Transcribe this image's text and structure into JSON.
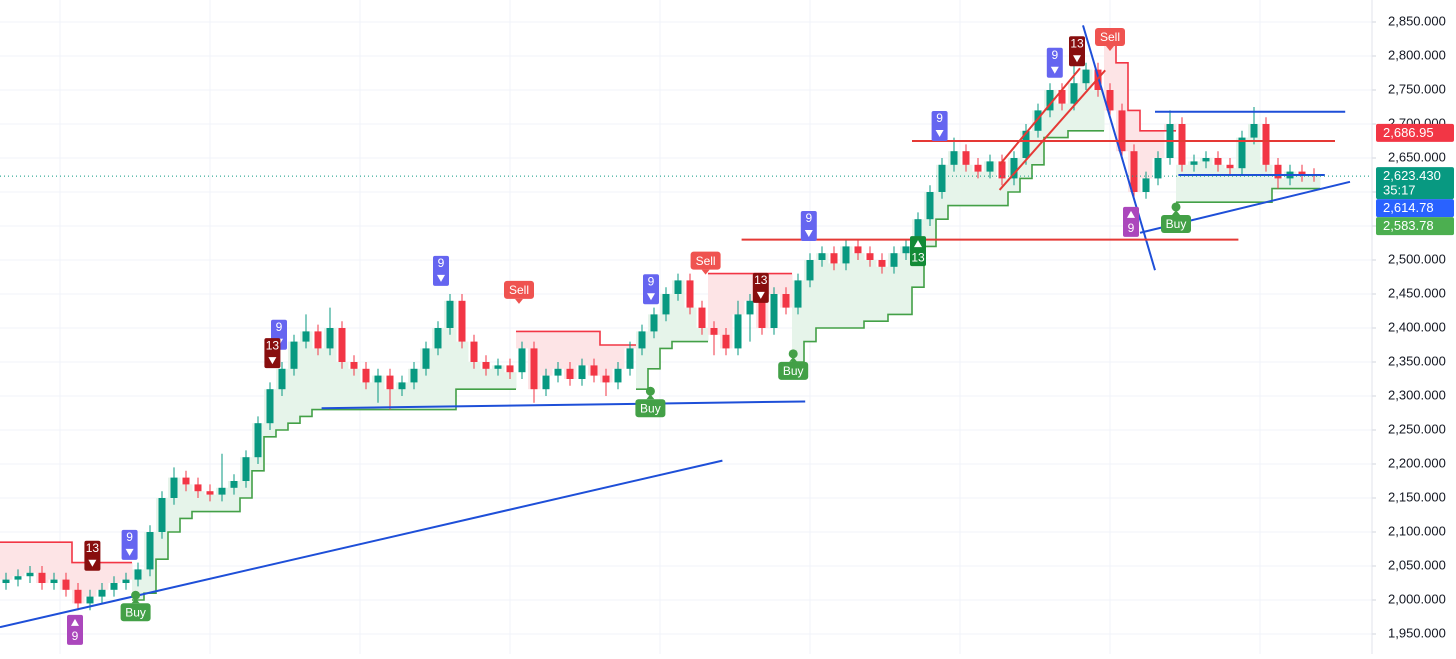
{
  "chart_data": {
    "type": "candlestick",
    "up_color": "#089981",
    "down_color": "#f23645",
    "grid": true,
    "ylim": [
      1920.6,
      2882.35
    ],
    "yticks": [
      {
        "value": 1950,
        "label": "1,950.000"
      },
      {
        "value": 2000,
        "label": "2,000.000"
      },
      {
        "value": 2050,
        "label": "2,050.000"
      },
      {
        "value": 2100,
        "label": "2,100.000"
      },
      {
        "value": 2150,
        "label": "2,150.000"
      },
      {
        "value": 2200,
        "label": "2,200.000"
      },
      {
        "value": 2250,
        "label": "2,250.000"
      },
      {
        "value": 2300,
        "label": "2,300.000"
      },
      {
        "value": 2350,
        "label": "2,350.000"
      },
      {
        "value": 2400,
        "label": "2,400.000"
      },
      {
        "value": 2450,
        "label": "2,450.000"
      },
      {
        "value": 2500,
        "label": "2,500.000"
      },
      {
        "value": 2550,
        "label": "2,550.000"
      },
      {
        "value": 2600,
        "label": "2,600.000"
      },
      {
        "value": 2650,
        "label": "2,650.000"
      },
      {
        "value": 2700,
        "label": "2,700.000"
      },
      {
        "value": 2750,
        "label": "2,750.000"
      },
      {
        "value": 2800,
        "label": "2,800.000"
      },
      {
        "value": 2850,
        "label": "2,850.000"
      }
    ],
    "open": [
      2025,
      2030,
      2035,
      2040,
      2025,
      2030,
      2015,
      1995,
      2005,
      2015,
      2025,
      2030,
      2045,
      2100,
      2150,
      2180,
      2170,
      2160,
      2155,
      2165,
      2175,
      2210,
      2260,
      2310,
      2340,
      2380,
      2395,
      2370,
      2400,
      2350,
      2340,
      2320,
      2330,
      2310,
      2320,
      2340,
      2370,
      2400,
      2440,
      2380,
      2350,
      2340,
      2345,
      2335,
      2370,
      2310,
      2330,
      2340,
      2325,
      2345,
      2330,
      2320,
      2340,
      2370,
      2395,
      2420,
      2450,
      2470,
      2430,
      2400,
      2390,
      2370,
      2420,
      2440,
      2400,
      2450,
      2430,
      2470,
      2500,
      2510,
      2495,
      2520,
      2510,
      2500,
      2490,
      2510,
      2520,
      2560,
      2600,
      2640,
      2660,
      2640,
      2630,
      2645,
      2620,
      2650,
      2690,
      2720,
      2750,
      2730,
      2760,
      2780,
      2750,
      2720,
      2660,
      2600,
      2620,
      2650,
      2700,
      2640,
      2645,
      2650,
      2640,
      2635,
      2680,
      2700,
      2640,
      2620,
      2630,
      2625
    ],
    "high": [
      2040,
      2045,
      2050,
      2050,
      2040,
      2040,
      2025,
      2015,
      2025,
      2035,
      2040,
      2055,
      2110,
      2160,
      2195,
      2190,
      2180,
      2170,
      2215,
      2185,
      2220,
      2270,
      2320,
      2350,
      2390,
      2420,
      2405,
      2430,
      2410,
      2360,
      2350,
      2340,
      2340,
      2330,
      2350,
      2380,
      2410,
      2450,
      2450,
      2390,
      2360,
      2355,
      2355,
      2380,
      2380,
      2340,
      2350,
      2350,
      2355,
      2355,
      2340,
      2350,
      2380,
      2405,
      2430,
      2460,
      2480,
      2480,
      2440,
      2410,
      2400,
      2440,
      2450,
      2450,
      2460,
      2460,
      2480,
      2510,
      2520,
      2520,
      2530,
      2530,
      2520,
      2510,
      2520,
      2530,
      2570,
      2610,
      2650,
      2680,
      2670,
      2650,
      2655,
      2655,
      2660,
      2700,
      2730,
      2760,
      2760,
      2790,
      2790,
      2790,
      2760,
      2730,
      2670,
      2630,
      2660,
      2720,
      2710,
      2655,
      2660,
      2660,
      2650,
      2690,
      2725,
      2710,
      2650,
      2640,
      2640,
      2635
    ],
    "low": [
      2015,
      2020,
      2025,
      2015,
      2015,
      2005,
      1985,
      1985,
      1995,
      2005,
      2015,
      2020,
      2035,
      2090,
      2140,
      2160,
      2150,
      2145,
      2145,
      2155,
      2165,
      2200,
      2250,
      2300,
      2330,
      2370,
      2360,
      2360,
      2340,
      2330,
      2310,
      2290,
      2280,
      2300,
      2310,
      2330,
      2360,
      2390,
      2370,
      2340,
      2330,
      2330,
      2325,
      2325,
      2290,
      2300,
      2320,
      2315,
      2315,
      2320,
      2300,
      2310,
      2330,
      2360,
      2385,
      2410,
      2440,
      2420,
      2390,
      2360,
      2360,
      2360,
      2380,
      2390,
      2390,
      2420,
      2420,
      2460,
      2490,
      2485,
      2485,
      2500,
      2490,
      2480,
      2480,
      2500,
      2510,
      2550,
      2590,
      2630,
      2630,
      2620,
      2620,
      2610,
      2610,
      2640,
      2680,
      2710,
      2720,
      2720,
      2750,
      2740,
      2710,
      2650,
      2590,
      2590,
      2610,
      2640,
      2630,
      2630,
      2635,
      2630,
      2625,
      2625,
      2670,
      2630,
      2605,
      2610,
      2615,
      2615
    ],
    "close": [
      2030,
      2035,
      2040,
      2025,
      2030,
      2015,
      1995,
      2005,
      2015,
      2025,
      2030,
      2045,
      2100,
      2150,
      2180,
      2170,
      2160,
      2155,
      2165,
      2175,
      2210,
      2260,
      2310,
      2340,
      2380,
      2395,
      2370,
      2400,
      2350,
      2340,
      2320,
      2330,
      2310,
      2320,
      2340,
      2370,
      2400,
      2440,
      2380,
      2350,
      2340,
      2345,
      2335,
      2370,
      2310,
      2330,
      2340,
      2325,
      2345,
      2330,
      2320,
      2340,
      2370,
      2395,
      2420,
      2450,
      2470,
      2430,
      2400,
      2390,
      2370,
      2420,
      2440,
      2400,
      2450,
      2430,
      2470,
      2500,
      2510,
      2495,
      2520,
      2510,
      2500,
      2490,
      2510,
      2520,
      2560,
      2600,
      2640,
      2660,
      2640,
      2630,
      2645,
      2620,
      2650,
      2690,
      2720,
      2750,
      2730,
      2760,
      2780,
      2750,
      2720,
      2660,
      2600,
      2620,
      2650,
      2700,
      2640,
      2645,
      2650,
      2640,
      2635,
      2680,
      2700,
      2640,
      2620,
      2630,
      2625,
      2623.43
    ],
    "up_stop": {
      "color": "#43a047",
      "fill": "#e6f4ea",
      "values": [
        null,
        null,
        null,
        null,
        null,
        null,
        null,
        null,
        null,
        null,
        null,
        2000,
        2010,
        2060,
        2100,
        2120,
        2130,
        2130,
        2130,
        2130,
        2150,
        2190,
        2240,
        2250,
        2260,
        2270,
        2280,
        2280,
        2280,
        2280,
        2280,
        2280,
        2280,
        2280,
        2280,
        2280,
        2280,
        2280,
        2310,
        2310,
        2310,
        2310,
        2310,
        null,
        null,
        null,
        null,
        null,
        null,
        null,
        null,
        null,
        null,
        2310,
        2340,
        2370,
        2380,
        2380,
        2380,
        null,
        null,
        null,
        null,
        null,
        null,
        null,
        2350,
        2380,
        2400,
        2400,
        2400,
        2400,
        2410,
        2410,
        2420,
        2420,
        2460,
        2520,
        2560,
        2580,
        2580,
        2580,
        2580,
        2580,
        2600,
        2620,
        2640,
        2680,
        2680,
        2690,
        2690,
        2690,
        null,
        null,
        null,
        null,
        null,
        null,
        2585,
        2585,
        2585,
        2585,
        2585,
        2585,
        2585,
        2585,
        2605,
        2605,
        2605,
        2605
      ]
    },
    "down_stop": {
      "color": "#f23645",
      "fill": "#fde4e6",
      "values": [
        2085,
        2085,
        2085,
        2085,
        2085,
        2085,
        2055,
        2055,
        2055,
        2055,
        2055,
        null,
        null,
        null,
        null,
        null,
        null,
        null,
        null,
        null,
        null,
        null,
        null,
        null,
        null,
        null,
        null,
        null,
        null,
        null,
        null,
        null,
        null,
        null,
        null,
        null,
        null,
        null,
        null,
        null,
        null,
        null,
        null,
        2395,
        2395,
        2395,
        2395,
        2395,
        2395,
        2395,
        2375,
        2375,
        2375,
        null,
        null,
        null,
        null,
        null,
        null,
        2480,
        2480,
        2480,
        2480,
        2480,
        2480,
        2480,
        null,
        null,
        null,
        null,
        null,
        null,
        null,
        null,
        null,
        null,
        null,
        null,
        null,
        null,
        null,
        null,
        null,
        null,
        null,
        null,
        null,
        null,
        null,
        null,
        null,
        null,
        2820,
        2790,
        2720,
        2690,
        2690,
        2690,
        null,
        null,
        null,
        null,
        null,
        null,
        null,
        null,
        null,
        null,
        null,
        null
      ]
    },
    "lines": [
      {
        "color": "#1e4fd8",
        "x": [
          -0.5,
          59.7
        ],
        "values": [
          1960,
          2205
        ]
      },
      {
        "color": "#1e4fd8",
        "x": [
          26.3,
          66.6
        ],
        "values": [
          2282,
          2292
        ]
      },
      {
        "color": "#1e4fd8",
        "x": [
          89.75,
          95.75
        ],
        "values": [
          2845,
          2485
        ]
      },
      {
        "color": "#1e4fd8",
        "x": [
          94.5,
          112
        ],
        "values": [
          2540,
          2615
        ]
      },
      {
        "color": "#1e4fd8",
        "x": [
          95.75,
          111.6
        ],
        "values": [
          2718,
          2718
        ]
      },
      {
        "color": "#1e4fd8",
        "x": [
          97.7,
          109.9
        ],
        "values": [
          2625,
          2625
        ]
      },
      {
        "color": "#e53935",
        "x": [
          75.5,
          110.75
        ],
        "values": [
          2675,
          2675
        ]
      },
      {
        "color": "#e53935",
        "x": [
          61.3,
          102.7
        ],
        "values": [
          2530,
          2530
        ]
      },
      {
        "color": "#e53935",
        "x": [
          82.8,
          89.5
        ],
        "values": [
          2640,
          2782
        ]
      },
      {
        "color": "#e53935",
        "x": [
          82.8,
          91.6
        ],
        "values": [
          2603,
          2779
        ]
      }
    ],
    "markers": [
      {
        "label": "13",
        "x": 7.2,
        "price": 2065,
        "color": "#880e0e",
        "shape": "down-arrow"
      },
      {
        "label": "9",
        "x": 10.3,
        "price": 2081,
        "color": "#6565f0",
        "shape": "down-arrow"
      },
      {
        "label": "Buy",
        "x": 10.8,
        "price": 1982,
        "color": "#43a047",
        "shape": "dot"
      },
      {
        "label": "9",
        "x": 5.75,
        "price": 1956,
        "color": "#ab47bc",
        "shape": "up-arrow"
      },
      {
        "label": "9",
        "x": 22.75,
        "price": 2390,
        "color": "#6565f0",
        "shape": "down-arrow"
      },
      {
        "label": "13",
        "x": 22.2,
        "price": 2363,
        "color": "#880e0e",
        "shape": "down-arrow"
      },
      {
        "label": "9",
        "x": 36.25,
        "price": 2484,
        "color": "#6565f0",
        "shape": "down-arrow"
      },
      {
        "label": "Sell",
        "x": 42.75,
        "price": 2456,
        "color": "#ef5350",
        "shape": "pointer"
      },
      {
        "label": "9",
        "x": 53.75,
        "price": 2457,
        "color": "#6565f0",
        "shape": "down-arrow"
      },
      {
        "label": "Buy",
        "x": 53.7,
        "price": 2282,
        "color": "#43a047",
        "shape": "dot"
      },
      {
        "label": "Sell",
        "x": 58.3,
        "price": 2499,
        "color": "#ef5350",
        "shape": "pointer"
      },
      {
        "label": "13",
        "x": 62.9,
        "price": 2459,
        "color": "#880e0e",
        "shape": "down-arrow"
      },
      {
        "label": "9",
        "x": 66.9,
        "price": 2550,
        "color": "#6565f0",
        "shape": "down-arrow"
      },
      {
        "label": "Buy",
        "x": 65.6,
        "price": 2337,
        "color": "#43a047",
        "shape": "dot"
      },
      {
        "label": "13",
        "x": 76,
        "price": 2513,
        "color": "#138a36",
        "shape": "up-arrow"
      },
      {
        "label": "9",
        "x": 77.8,
        "price": 2697,
        "color": "#6565f0",
        "shape": "down-arrow"
      },
      {
        "label": "9",
        "x": 87.4,
        "price": 2790,
        "color": "#6565f0",
        "shape": "down-arrow"
      },
      {
        "label": "13",
        "x": 89.25,
        "price": 2807,
        "color": "#880e0e",
        "shape": "down-arrow"
      },
      {
        "label": "Sell",
        "x": 92,
        "price": 2828,
        "color": "#ef5350",
        "shape": "pointer"
      },
      {
        "label": "9",
        "x": 93.75,
        "price": 2556,
        "color": "#ab47bc",
        "shape": "up-arrow"
      },
      {
        "label": "Buy",
        "x": 97.5,
        "price": 2553,
        "color": "#43a047",
        "shape": "dot"
      }
    ],
    "price_labels": [
      {
        "value": 2686.95,
        "label": "2,686.95",
        "color": "#f23645"
      },
      {
        "value": 2623.43,
        "label": "2,623.430",
        "sublabel": "35:17",
        "color": "#089981",
        "dotted_line": true
      },
      {
        "value": 2614.78,
        "label": "2,614.78",
        "color": "#2962ff"
      },
      {
        "value": 2583.78,
        "label": "2,583.78",
        "color": "#4caf50"
      }
    ]
  }
}
